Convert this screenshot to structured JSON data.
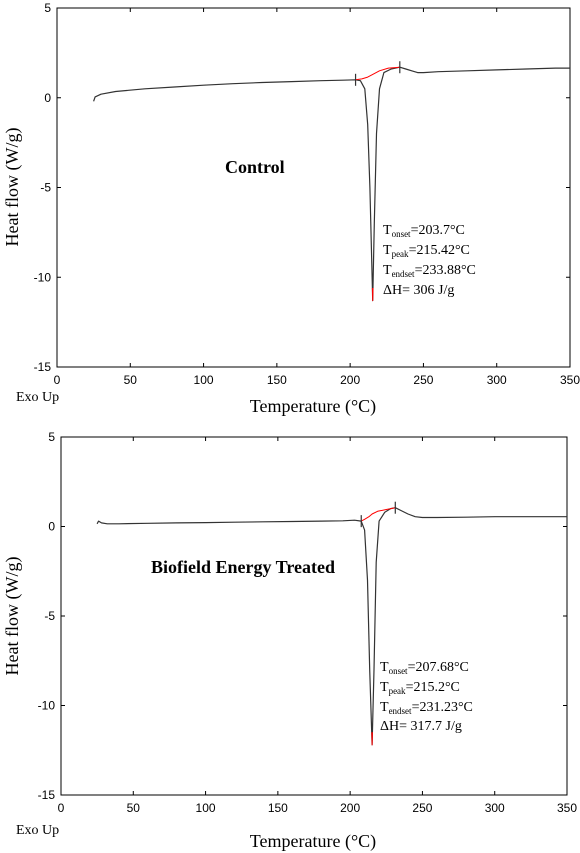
{
  "chart_data": [
    {
      "type": "line",
      "panel_label": "Control",
      "xlabel": "Temperature (°C)",
      "ylabel": "Heat flow (W/g)",
      "corner_note": "Exo Up",
      "xlim": [
        0,
        350
      ],
      "ylim": [
        -15,
        5
      ],
      "xticks": [
        "0",
        "50",
        "100",
        "150",
        "200",
        "250",
        "300",
        "350"
      ],
      "yticks": [
        "5",
        "0",
        "-5",
        "-10",
        "-15"
      ],
      "annotations": {
        "onset": {
          "prefix": "T",
          "sub": "onset",
          "value": "=203.7°C"
        },
        "peak": {
          "prefix": "T",
          "sub": "peak",
          "value": "=215.42°C"
        },
        "endset": {
          "prefix": "T",
          "sub": "endset",
          "value": "=233.88°C"
        },
        "dh": "ΔH= 306 J/g"
      },
      "series": [
        {
          "color": "#333333",
          "x": [
            25,
            26,
            30,
            40,
            60,
            80,
            100,
            120,
            140,
            160,
            180,
            195,
            203.7,
            207,
            210,
            212,
            213.5,
            215.42,
            216.5,
            218,
            220,
            223,
            228,
            233.88,
            238,
            242,
            246,
            250,
            260,
            280,
            300,
            320,
            340,
            350
          ],
          "y": [
            -0.2,
            0.05,
            0.2,
            0.35,
            0.5,
            0.6,
            0.7,
            0.78,
            0.85,
            0.9,
            0.95,
            0.98,
            1.0,
            0.95,
            0.5,
            -1.5,
            -5.0,
            -11.3,
            -7.0,
            -2.0,
            0.5,
            1.4,
            1.6,
            1.7,
            1.6,
            1.5,
            1.4,
            1.4,
            1.45,
            1.5,
            1.55,
            1.6,
            1.65,
            1.65
          ]
        },
        {
          "name": "baseline",
          "color": "#ff0000",
          "x": [
            203.7,
            208,
            212,
            215.42,
            220,
            226,
            233.88
          ],
          "y": [
            1.0,
            1.05,
            1.15,
            1.3,
            1.5,
            1.65,
            1.7
          ]
        },
        {
          "name": "peak-marker",
          "color": "#ff0000",
          "x": [
            215.2,
            215.42,
            215.6
          ],
          "y": [
            -10.6,
            -11.3,
            -10.6
          ]
        }
      ]
    },
    {
      "type": "line",
      "panel_label": "Biofield Energy Treated",
      "xlabel": "Temperature (°C)",
      "ylabel": "Heat flow (W/g)",
      "corner_note": "Exo Up",
      "xlim": [
        0,
        350
      ],
      "ylim": [
        -15,
        5
      ],
      "xticks": [
        "0",
        "50",
        "100",
        "150",
        "200",
        "250",
        "300",
        "350"
      ],
      "yticks": [
        "5",
        "0",
        "-5",
        "-10",
        "-15"
      ],
      "annotations": {
        "onset": {
          "prefix": "T",
          "sub": "onset",
          "value": "=207.68°C"
        },
        "peak": {
          "prefix": "T",
          "sub": "peak",
          "value": "=215.2°C"
        },
        "endset": {
          "prefix": "T",
          "sub": "endset",
          "value": "=231.23°C"
        },
        "dh": "ΔH= 317.7 J/g"
      },
      "series": [
        {
          "color": "#333333",
          "x": [
            25,
            26,
            28,
            32,
            40,
            60,
            80,
            100,
            120,
            140,
            160,
            180,
            195,
            203,
            207.68,
            210,
            212,
            213.5,
            215.2,
            216.5,
            218,
            220,
            224,
            228,
            231.23,
            235,
            240,
            245,
            250,
            260,
            280,
            300,
            320,
            340,
            350
          ],
          "y": [
            0.15,
            0.3,
            0.2,
            0.15,
            0.15,
            0.18,
            0.2,
            0.22,
            0.24,
            0.26,
            0.28,
            0.3,
            0.32,
            0.35,
            0.3,
            -0.2,
            -3.0,
            -8.0,
            -12.2,
            -8.0,
            -2.0,
            0.3,
            0.8,
            1.0,
            1.05,
            0.9,
            0.7,
            0.55,
            0.5,
            0.5,
            0.52,
            0.55,
            0.55,
            0.55,
            0.55
          ]
        },
        {
          "name": "baseline",
          "color": "#ff0000",
          "x": [
            207.68,
            210,
            213,
            215.2,
            219,
            225,
            231.23
          ],
          "y": [
            0.3,
            0.4,
            0.55,
            0.7,
            0.85,
            0.95,
            1.05
          ]
        },
        {
          "name": "peak-marker",
          "color": "#ff0000",
          "x": [
            215.0,
            215.2,
            215.4
          ],
          "y": [
            -11.5,
            -12.2,
            -11.5
          ]
        }
      ]
    }
  ]
}
